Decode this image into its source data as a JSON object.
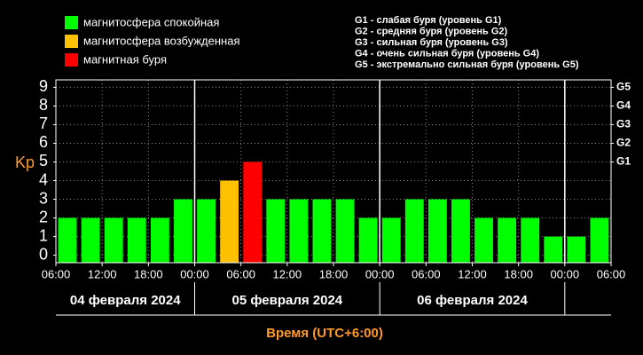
{
  "chart_data": {
    "type": "bar",
    "ylabel": "Kp",
    "xlabel": "Время (UTC+6:00)",
    "legend": [
      {
        "name": "магнитосфера спокойная",
        "color": "#00ff00"
      },
      {
        "name": "магнитосфера возбужденная",
        "color": "#ffc000"
      },
      {
        "name": "магнитная буря",
        "color": "#ff0000"
      }
    ],
    "storm_levels": [
      "G1 - слабая буря (уровень G1)",
      "G2 - средняя буря (уровень G2)",
      "G3 - сильная буря (уровень G3)",
      "G4 - очень сильная буря (уровень G4)",
      "G5 - экстремально сильная буря (уровень G5)"
    ],
    "x": [
      1.5,
      4.5,
      7.5,
      10.5,
      13.5,
      16.5,
      19.5,
      22.5,
      25.5,
      28.5,
      31.5,
      34.5,
      37.5,
      40.5,
      43.5,
      46.5,
      49.5,
      52.5,
      55.5,
      58.5,
      61.5,
      64.5,
      67.5,
      70.5
    ],
    "values": [
      2,
      2,
      2,
      2,
      2,
      3,
      3,
      4,
      5,
      3,
      3,
      3,
      3,
      2,
      2,
      3,
      3,
      3,
      2,
      2,
      2,
      1,
      1,
      2
    ],
    "colors": [
      "#00ff00",
      "#00ff00",
      "#00ff00",
      "#00ff00",
      "#00ff00",
      "#00ff00",
      "#00ff00",
      "#ffc000",
      "#ff0000",
      "#00ff00",
      "#00ff00",
      "#00ff00",
      "#00ff00",
      "#00ff00",
      "#00ff00",
      "#00ff00",
      "#00ff00",
      "#00ff00",
      "#00ff00",
      "#00ff00",
      "#00ff00",
      "#00ff00",
      "#00ff00",
      "#00ff00"
    ],
    "xlim": [
      0,
      72
    ],
    "xticks": [
      {
        "value": 0,
        "label": "06:00"
      },
      {
        "value": 6,
        "label": "12:00"
      },
      {
        "value": 12,
        "label": "18:00"
      },
      {
        "value": 18,
        "label": "00:00"
      },
      {
        "value": 24,
        "label": "06:00"
      },
      {
        "value": 30,
        "label": "12:00"
      },
      {
        "value": 36,
        "label": "18:00"
      },
      {
        "value": 42,
        "label": "00:00"
      },
      {
        "value": 48,
        "label": "06:00"
      },
      {
        "value": 54,
        "label": "12:00"
      },
      {
        "value": 60,
        "label": "18:00"
      },
      {
        "value": 66,
        "label": "00:00"
      },
      {
        "value": 72,
        "label": "06:00"
      }
    ],
    "day_boundaries": [
      18,
      42,
      66
    ],
    "day_labels": [
      "04 февраля 2024",
      "05 февраля 2024",
      "06 февраля 2024"
    ],
    "ylim": [
      -0.4,
      9.4
    ],
    "yticks": [
      0,
      1,
      2,
      3,
      4,
      5,
      6,
      7,
      8,
      9
    ],
    "y2ticks": [
      {
        "value": 5,
        "label": "G1"
      },
      {
        "value": 6,
        "label": "G2"
      },
      {
        "value": 7,
        "label": "G3"
      },
      {
        "value": 8,
        "label": "G4"
      },
      {
        "value": 9,
        "label": "G5"
      }
    ],
    "grid": true
  }
}
